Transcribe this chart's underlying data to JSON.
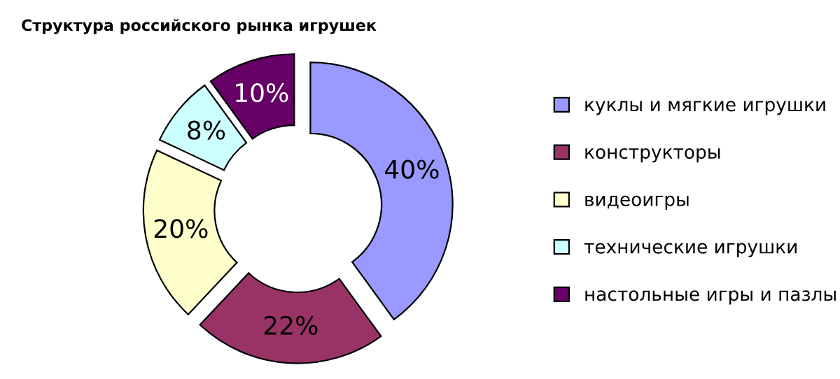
{
  "chart_data": {
    "type": "donut",
    "title": "Структура российского рынка игрушек",
    "categories": [
      "куклы и мягкие игрушки",
      "конструкторы",
      "видеоигры",
      "технические игрушки",
      "настольные игры и пазлы"
    ],
    "values": [
      40,
      22,
      20,
      8,
      10
    ],
    "colors": [
      "#9999ff",
      "#993366",
      "#ffffcc",
      "#ccffff",
      "#660066"
    ],
    "value_labels": [
      "40%",
      "22%",
      "20%",
      "8%",
      "10%"
    ],
    "legend": "right"
  }
}
